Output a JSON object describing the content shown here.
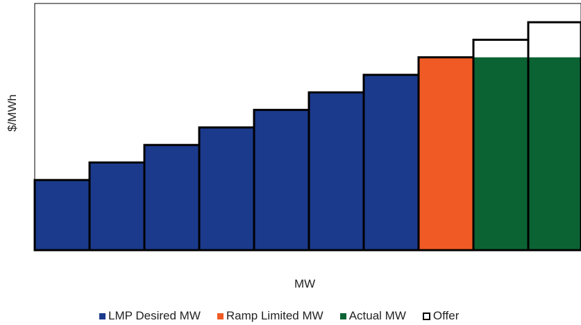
{
  "chart_data": {
    "type": "bar",
    "xlabel": "MW",
    "ylabel": "$/MWh",
    "ylim": [
      0,
      14
    ],
    "grid": false,
    "legend_position": "bottom",
    "colors": {
      "lmp_desired": "#1b3a8c",
      "ramp_limited": "#f05a24",
      "actual": "#0b6334",
      "offer_outline": "#000000"
    },
    "series": [
      {
        "name": "LMP Desired MW",
        "color": "#1b3a8c",
        "values": [
          4,
          5,
          6,
          7,
          8,
          9,
          10,
          null,
          null,
          null
        ]
      },
      {
        "name": "Ramp Limited MW",
        "color": "#f05a24",
        "values": [
          null,
          null,
          null,
          null,
          null,
          null,
          null,
          11,
          null,
          null
        ]
      },
      {
        "name": "Actual MW",
        "color": "#0b6334",
        "values": [
          null,
          null,
          null,
          null,
          null,
          null,
          null,
          null,
          11,
          11
        ]
      },
      {
        "name": "Offer",
        "color": "#ffffff",
        "outline": "#000000",
        "values": [
          4,
          5,
          6,
          7,
          8,
          9,
          10,
          11,
          12,
          13
        ]
      }
    ]
  }
}
